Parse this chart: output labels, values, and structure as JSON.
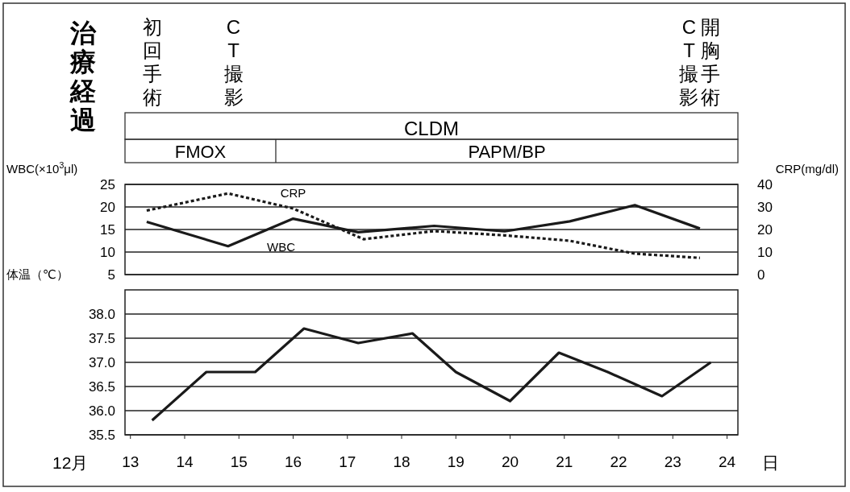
{
  "chart_data": [
    {
      "type": "line",
      "title": "治療経過",
      "annotations": [
        "初回手術",
        "CT撮影",
        "CT撮影",
        "開胸手術",
        "CLDM",
        "FMOX",
        "PAPM/BP"
      ],
      "ylabel": "WBC(×10$^{3}$μl)",
      "y2label": "CRP(mg/dl)",
      "xlim": [
        12.9,
        24.2
      ],
      "ylim": [
        5,
        25
      ],
      "yticks": [
        5,
        10,
        15,
        20,
        25
      ],
      "y2lim": [
        0,
        40
      ],
      "y2ticks": [
        0,
        10,
        20,
        30,
        40
      ],
      "tick_labels": "y",
      "grid": "y",
      "series": [
        {
          "name": "WBC",
          "color": "#1a1a1a",
          "line_style": "solid",
          "x": [
            13.3,
            14.8,
            16.0,
            17.2,
            18.6,
            19.9,
            21.1,
            22.3,
            23.5
          ],
          "values": [
            16.7,
            11.3,
            17.4,
            14.4,
            15.8,
            14.6,
            16.8,
            20.4,
            15.2
          ]
        },
        {
          "name": "CRP",
          "color": "#1a1a1a",
          "line_style": "dotted",
          "axis": "y2",
          "x": [
            13.3,
            14.8,
            16.0,
            17.3,
            18.6,
            19.9,
            21.1,
            22.3,
            23.5
          ],
          "values": [
            28.4,
            36.0,
            29.3,
            15.7,
            19.3,
            17.4,
            15.0,
            9.3,
            7.4
          ]
        }
      ]
    },
    {
      "type": "line",
      "ylabel": "体温（℃）",
      "xlabel": "日",
      "annotations": [
        "12月"
      ],
      "xlim": [
        12.9,
        24.2
      ],
      "xticks": [
        13,
        14,
        15,
        16,
        17,
        18,
        19,
        20,
        21,
        22,
        23,
        24
      ],
      "ylim": [
        35.5,
        38.5
      ],
      "yticks": [
        {
          "value": 35.5,
          "label": "35.5"
        },
        {
          "value": 36,
          "label": "36.0"
        },
        {
          "value": 36.5,
          "label": "36.5"
        },
        {
          "value": 37,
          "label": "37.0"
        },
        {
          "value": 37.5,
          "label": "37.5"
        },
        {
          "value": 38,
          "label": "38.0"
        }
      ],
      "grid": "y",
      "series": [
        {
          "color": "#1a1a1a",
          "line_style": "solid",
          "x": [
            13.4,
            14.4,
            15.3,
            16.2,
            17.2,
            18.2,
            19.0,
            20.0,
            20.9,
            21.8,
            22.8,
            23.7
          ],
          "values": [
            35.8,
            36.8,
            36.8,
            37.7,
            37.4,
            37.6,
            36.8,
            36.2,
            37.2,
            36.8,
            36.3,
            37.0
          ]
        }
      ]
    }
  ]
}
